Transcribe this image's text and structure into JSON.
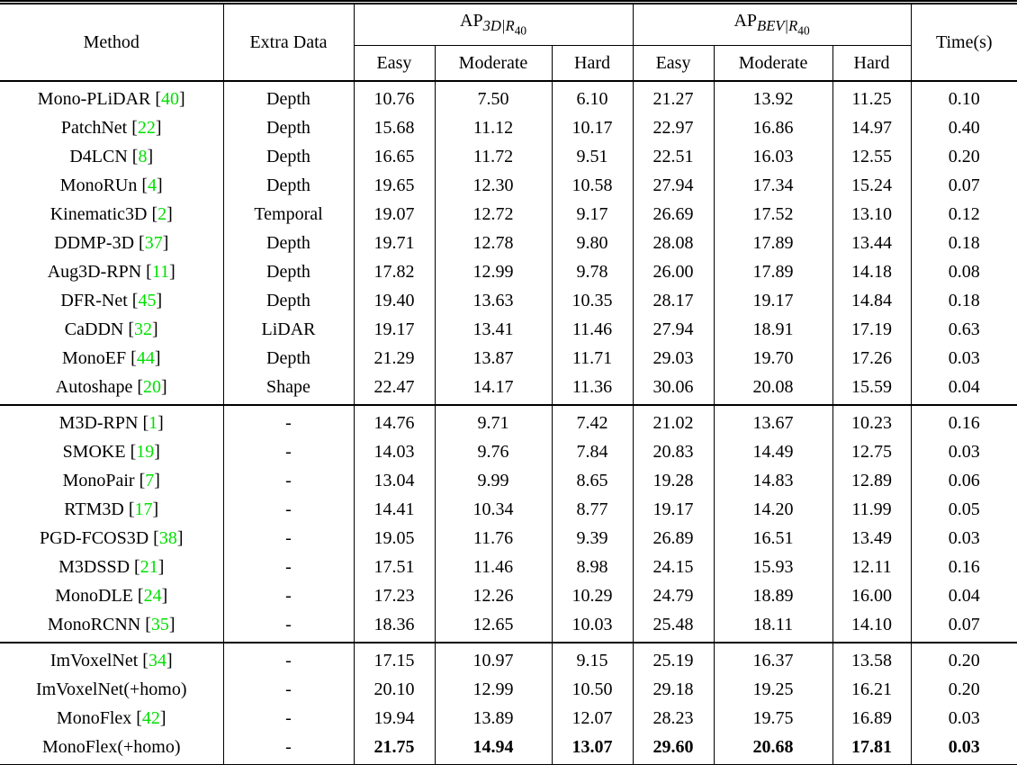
{
  "colors": {
    "background": "#ffffff",
    "text": "#000000",
    "rule": "#000000",
    "citation_green": "#00DF00"
  },
  "table": {
    "cite_open": " [",
    "cite_close": "]",
    "header": {
      "method": "Method",
      "extra_data": "Extra Data",
      "ap3d": {
        "base": "AP",
        "sub": "3D|R",
        "subsub": "40"
      },
      "apbev": {
        "base": "AP",
        "sub": "BEV|R",
        "subsub": "40"
      },
      "sub_labels": [
        "Easy",
        "Moderate",
        "Hard"
      ],
      "time": "Time(s)"
    },
    "groups": [
      {
        "rows": [
          {
            "method": "Mono-PLiDAR",
            "cite": "40",
            "extra": "Depth",
            "values": [
              "10.76",
              "7.50",
              "6.10",
              "21.27",
              "13.92",
              "11.25",
              "0.10"
            ],
            "bold": false
          },
          {
            "method": "PatchNet",
            "cite": "22",
            "extra": "Depth",
            "values": [
              "15.68",
              "11.12",
              "10.17",
              "22.97",
              "16.86",
              "14.97",
              "0.40"
            ],
            "bold": false
          },
          {
            "method": "D4LCN",
            "cite": "8",
            "extra": "Depth",
            "values": [
              "16.65",
              "11.72",
              "9.51",
              "22.51",
              "16.03",
              "12.55",
              "0.20"
            ],
            "bold": false
          },
          {
            "method": "MonoRUn",
            "cite": "4",
            "extra": "Depth",
            "values": [
              "19.65",
              "12.30",
              "10.58",
              "27.94",
              "17.34",
              "15.24",
              "0.07"
            ],
            "bold": false
          },
          {
            "method": "Kinematic3D",
            "cite": "2",
            "extra": "Temporal",
            "values": [
              "19.07",
              "12.72",
              "9.17",
              "26.69",
              "17.52",
              "13.10",
              "0.12"
            ],
            "bold": false
          },
          {
            "method": "DDMP-3D",
            "cite": "37",
            "extra": "Depth",
            "values": [
              "19.71",
              "12.78",
              "9.80",
              "28.08",
              "17.89",
              "13.44",
              "0.18"
            ],
            "bold": false
          },
          {
            "method": "Aug3D-RPN",
            "cite": "11",
            "extra": "Depth",
            "values": [
              "17.82",
              "12.99",
              "9.78",
              "26.00",
              "17.89",
              "14.18",
              "0.08"
            ],
            "bold": false
          },
          {
            "method": "DFR-Net",
            "cite": "45",
            "extra": "Depth",
            "values": [
              "19.40",
              "13.63",
              "10.35",
              "28.17",
              "19.17",
              "14.84",
              "0.18"
            ],
            "bold": false
          },
          {
            "method": "CaDDN",
            "cite": "32",
            "extra": "LiDAR",
            "values": [
              "19.17",
              "13.41",
              "11.46",
              "27.94",
              "18.91",
              "17.19",
              "0.63"
            ],
            "bold": false
          },
          {
            "method": "MonoEF",
            "cite": "44",
            "extra": "Depth",
            "values": [
              "21.29",
              "13.87",
              "11.71",
              "29.03",
              "19.70",
              "17.26",
              "0.03"
            ],
            "bold": false
          },
          {
            "method": "Autoshape",
            "cite": "20",
            "extra": "Shape",
            "values": [
              "22.47",
              "14.17",
              "11.36",
              "30.06",
              "20.08",
              "15.59",
              "0.04"
            ],
            "bold": false
          }
        ]
      },
      {
        "rows": [
          {
            "method": "M3D-RPN",
            "cite": "1",
            "extra": "-",
            "values": [
              "14.76",
              "9.71",
              "7.42",
              "21.02",
              "13.67",
              "10.23",
              "0.16"
            ],
            "bold": false
          },
          {
            "method": "SMOKE",
            "cite": "19",
            "extra": "-",
            "values": [
              "14.03",
              "9.76",
              "7.84",
              "20.83",
              "14.49",
              "12.75",
              "0.03"
            ],
            "bold": false
          },
          {
            "method": "MonoPair",
            "cite": "7",
            "extra": "-",
            "values": [
              "13.04",
              "9.99",
              "8.65",
              "19.28",
              "14.83",
              "12.89",
              "0.06"
            ],
            "bold": false
          },
          {
            "method": "RTM3D",
            "cite": "17",
            "extra": "-",
            "values": [
              "14.41",
              "10.34",
              "8.77",
              "19.17",
              "14.20",
              "11.99",
              "0.05"
            ],
            "bold": false
          },
          {
            "method": "PGD-FCOS3D",
            "cite": "38",
            "extra": "-",
            "values": [
              "19.05",
              "11.76",
              "9.39",
              "26.89",
              "16.51",
              "13.49",
              "0.03"
            ],
            "bold": false
          },
          {
            "method": "M3DSSD",
            "cite": "21",
            "extra": "-",
            "values": [
              "17.51",
              "11.46",
              "8.98",
              "24.15",
              "15.93",
              "12.11",
              "0.16"
            ],
            "bold": false
          },
          {
            "method": "MonoDLE",
            "cite": "24",
            "extra": "-",
            "values": [
              "17.23",
              "12.26",
              "10.29",
              "24.79",
              "18.89",
              "16.00",
              "0.04"
            ],
            "bold": false
          },
          {
            "method": "MonoRCNN",
            "cite": "35",
            "extra": "-",
            "values": [
              "18.36",
              "12.65",
              "10.03",
              "25.48",
              "18.11",
              "14.10",
              "0.07"
            ],
            "bold": false
          }
        ]
      },
      {
        "rows": [
          {
            "method": "ImVoxelNet",
            "cite": "34",
            "extra": "-",
            "values": [
              "17.15",
              "10.97",
              "9.15",
              "25.19",
              "16.37",
              "13.58",
              "0.20"
            ],
            "bold": false
          },
          {
            "method": "ImVoxelNet(+homo)",
            "cite": "",
            "extra": "-",
            "values": [
              "20.10",
              "12.99",
              "10.50",
              "29.18",
              "19.25",
              "16.21",
              "0.20"
            ],
            "bold": false
          },
          {
            "method": "MonoFlex",
            "cite": "42",
            "extra": "-",
            "values": [
              "19.94",
              "13.89",
              "12.07",
              "28.23",
              "19.75",
              "16.89",
              "0.03"
            ],
            "bold": false
          },
          {
            "method": "MonoFlex(+homo)",
            "cite": "",
            "extra": "-",
            "values": [
              "21.75",
              "14.94",
              "13.07",
              "29.60",
              "20.68",
              "17.81",
              "0.03"
            ],
            "bold": true
          }
        ]
      }
    ]
  }
}
